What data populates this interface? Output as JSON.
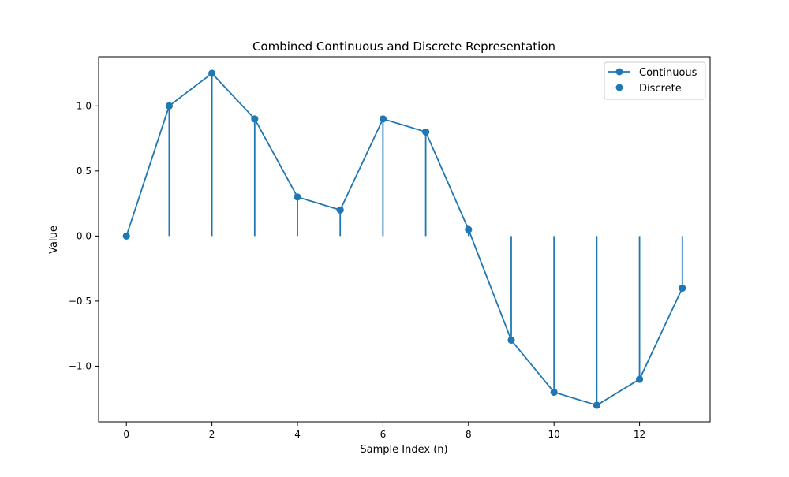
{
  "chart_data": {
    "type": "line",
    "title": "Combined Continuous and Discrete Representation",
    "xlabel": "Sample Index (n)",
    "ylabel": "Value",
    "xlim": [
      -0.65,
      13.65
    ],
    "ylim": [
      -1.4275,
      1.3775
    ],
    "x_ticks": [
      0,
      2,
      4,
      6,
      8,
      10,
      12
    ],
    "x_tick_labels": [
      "0",
      "2",
      "4",
      "6",
      "8",
      "10",
      "12"
    ],
    "y_ticks": [
      -1.0,
      -0.5,
      0.0,
      0.5,
      1.0
    ],
    "y_tick_labels": [
      "−1.0",
      "−0.5",
      "0.0",
      "0.5",
      "1.0"
    ],
    "grid": false,
    "legend_position": "top-right",
    "color": "#1f77b4",
    "x": [
      0,
      1,
      2,
      3,
      4,
      5,
      6,
      7,
      8,
      9,
      10,
      11,
      12,
      13
    ],
    "series": [
      {
        "name": "Continuous",
        "style": "line-with-markers",
        "values": [
          0.0,
          1.0,
          1.25,
          0.9,
          0.3,
          0.2,
          0.9,
          0.8,
          0.05,
          -0.8,
          -1.2,
          -1.3,
          -1.1,
          -0.4
        ]
      },
      {
        "name": "Discrete",
        "style": "stem",
        "values": [
          0.0,
          1.0,
          1.25,
          0.9,
          0.3,
          0.2,
          0.9,
          0.8,
          0.05,
          -0.8,
          -1.2,
          -1.3,
          -1.1,
          -0.4
        ]
      }
    ]
  }
}
